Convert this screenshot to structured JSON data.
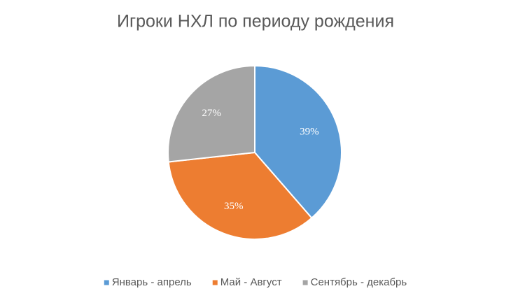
{
  "chart_data": {
    "type": "pie",
    "title": "Игроки НХЛ по периоду рождения",
    "categories": [
      "Январь - апрель",
      "Май - Август",
      "Сентябрь - декабрь"
    ],
    "values": [
      39,
      35,
      27
    ],
    "value_labels": [
      "39%",
      "35%",
      "27%"
    ],
    "colors": [
      "#5b9bd5",
      "#ed7d31",
      "#a5a5a5"
    ],
    "legend": "bottom"
  }
}
